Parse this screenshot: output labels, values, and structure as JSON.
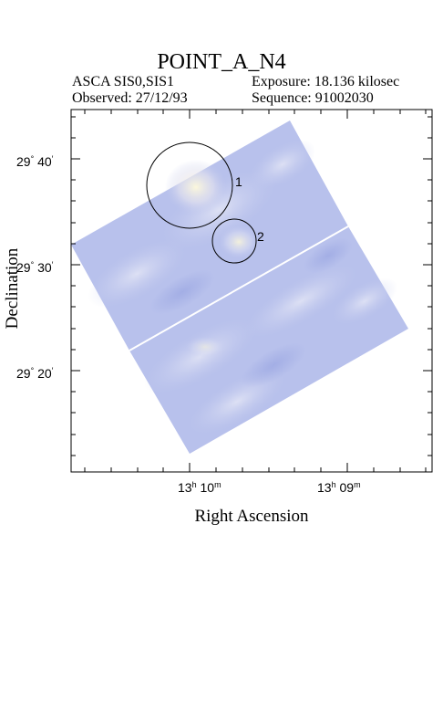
{
  "title": "POINT_A_N4",
  "instrument": "ASCA SIS0,SIS1",
  "exposure": "Exposure: 18.136 kilosec",
  "observed": "Observed: 27/12/93",
  "sequence": "Sequence: 91002030",
  "axes": {
    "xlabel": "Right Ascension",
    "ylabel": "Declination",
    "x_ticks": [
      {
        "hours": "13",
        "minutes": "10"
      },
      {
        "hours": "13",
        "minutes": "09"
      }
    ],
    "y_ticks": [
      {
        "deg": "29",
        "arcmin": "40"
      },
      {
        "deg": "29",
        "arcmin": "30"
      },
      {
        "deg": "29",
        "arcmin": "20"
      }
    ]
  },
  "sources": [
    {
      "label": "1"
    },
    {
      "label": "2"
    }
  ],
  "colors": {
    "image_base": "#b4bdea",
    "image_light": "#dfe3f4",
    "image_highlight": "#f4f1d8",
    "frame": "#000000"
  }
}
